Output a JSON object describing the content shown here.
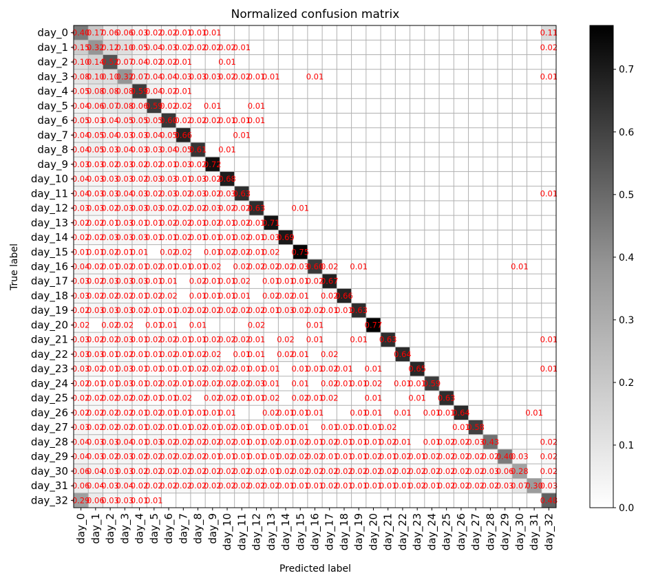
{
  "chart_data": {
    "type": "heatmap",
    "title": "Normalized confusion matrix",
    "xlabel": "Predicted label",
    "ylabel": "True label",
    "categories": [
      "day_0",
      "day_1",
      "day_2",
      "day_3",
      "day_4",
      "day_5",
      "day_6",
      "day_7",
      "day_8",
      "day_9",
      "day_10",
      "day_11",
      "day_12",
      "day_13",
      "day_14",
      "day_15",
      "day_16",
      "day_17",
      "day_18",
      "day_19",
      "day_20",
      "day_21",
      "day_22",
      "day_23",
      "day_24",
      "day_25",
      "day_26",
      "day_27",
      "day_28",
      "day_29",
      "day_30",
      "day_31",
      "day_32"
    ],
    "colormap": "Greys",
    "vmin": 0.0,
    "vmax": 0.77,
    "colorbar_ticks": [
      "0.0",
      "0.1",
      "0.2",
      "0.3",
      "0.4",
      "0.5",
      "0.6",
      "0.7"
    ],
    "grid": true,
    "annotation_color": "#ff0000",
    "values": [
      [
        0.4,
        0.17,
        0.06,
        0.06,
        0.03,
        0.02,
        0.02,
        0.01,
        0.01,
        0.01,
        0,
        0,
        0,
        0,
        0,
        0,
        0,
        0,
        0,
        0,
        0,
        0,
        0,
        0,
        0,
        0,
        0,
        0,
        0,
        0,
        0,
        0,
        0.11
      ],
      [
        0.15,
        0.32,
        0.12,
        0.1,
        0.05,
        0.04,
        0.03,
        0.02,
        0.02,
        0.02,
        0.02,
        0.01,
        0,
        0,
        0,
        0,
        0,
        0,
        0,
        0,
        0,
        0,
        0,
        0,
        0,
        0,
        0,
        0,
        0,
        0,
        0,
        0,
        0.02
      ],
      [
        0.1,
        0.14,
        0.52,
        0.07,
        0.04,
        0.02,
        0.02,
        0.01,
        0,
        0,
        0.01,
        0,
        0,
        0,
        0,
        0,
        0,
        0,
        0,
        0,
        0,
        0,
        0,
        0,
        0,
        0,
        0,
        0,
        0,
        0,
        0,
        0,
        0
      ],
      [
        0.08,
        0.1,
        0.1,
        0.32,
        0.07,
        0.04,
        0.04,
        0.03,
        0.03,
        0.03,
        0.02,
        0.02,
        0.01,
        0.01,
        0,
        0,
        0.01,
        0,
        0,
        0,
        0,
        0,
        0,
        0,
        0,
        0,
        0,
        0,
        0,
        0,
        0,
        0,
        0.01
      ],
      [
        0.05,
        0.08,
        0.08,
        0.08,
        0.59,
        0.04,
        0.02,
        0.01,
        0,
        0,
        0,
        0,
        0,
        0,
        0,
        0,
        0,
        0,
        0,
        0,
        0,
        0,
        0,
        0,
        0,
        0,
        0,
        0,
        0,
        0,
        0,
        0,
        0
      ],
      [
        0.04,
        0.06,
        0.07,
        0.08,
        0.06,
        0.59,
        0.02,
        0.02,
        0,
        0.01,
        0,
        0,
        0.01,
        0,
        0,
        0,
        0,
        0,
        0,
        0,
        0,
        0,
        0,
        0,
        0,
        0,
        0,
        0,
        0,
        0,
        0,
        0,
        0
      ],
      [
        0.05,
        0.03,
        0.04,
        0.05,
        0.05,
        0.05,
        0.6,
        0.02,
        0.02,
        0.02,
        0.01,
        0.01,
        0.01,
        0,
        0,
        0,
        0,
        0,
        0,
        0,
        0,
        0,
        0,
        0,
        0,
        0,
        0,
        0,
        0,
        0,
        0,
        0,
        0
      ],
      [
        0.04,
        0.05,
        0.04,
        0.03,
        0.03,
        0.04,
        0.05,
        0.66,
        0,
        0,
        0,
        0.01,
        0,
        0,
        0,
        0,
        0,
        0,
        0,
        0,
        0,
        0,
        0,
        0,
        0,
        0,
        0,
        0,
        0,
        0,
        0,
        0,
        0
      ],
      [
        0.04,
        0.05,
        0.03,
        0.04,
        0.03,
        0.03,
        0.04,
        0.05,
        0.61,
        0,
        0.01,
        0,
        0,
        0,
        0,
        0,
        0,
        0,
        0,
        0,
        0,
        0,
        0,
        0,
        0,
        0,
        0,
        0,
        0,
        0,
        0,
        0,
        0
      ],
      [
        0.03,
        0.03,
        0.02,
        0.03,
        0.02,
        0.02,
        0.01,
        0.03,
        0.02,
        0.72,
        0,
        0,
        0,
        0,
        0,
        0,
        0,
        0,
        0,
        0,
        0,
        0,
        0,
        0,
        0,
        0,
        0,
        0,
        0,
        0,
        0,
        0,
        0
      ],
      [
        0.04,
        0.03,
        0.03,
        0.03,
        0.02,
        0.03,
        0.03,
        0.01,
        0.03,
        0.02,
        0.68,
        0,
        0,
        0,
        0,
        0,
        0,
        0,
        0,
        0,
        0,
        0,
        0,
        0,
        0,
        0,
        0,
        0,
        0,
        0,
        0,
        0,
        0
      ],
      [
        0.04,
        0.03,
        0.03,
        0.04,
        0.03,
        0.02,
        0.03,
        0.02,
        0.03,
        0.02,
        0.03,
        0.63,
        0,
        0,
        0,
        0,
        0,
        0,
        0,
        0,
        0,
        0,
        0,
        0,
        0,
        0,
        0,
        0,
        0,
        0,
        0,
        0,
        0.01
      ],
      [
        0.03,
        0.03,
        0.02,
        0.03,
        0.03,
        0.03,
        0.02,
        0.02,
        0.02,
        0.03,
        0.02,
        0.02,
        0.63,
        0,
        0,
        0.01,
        0,
        0,
        0,
        0,
        0,
        0,
        0,
        0,
        0,
        0,
        0,
        0,
        0,
        0,
        0,
        0,
        0
      ],
      [
        0.02,
        0.02,
        0.01,
        0.03,
        0.01,
        0.01,
        0.02,
        0.02,
        0.01,
        0.02,
        0.01,
        0.02,
        0.01,
        0.71,
        0,
        0,
        0,
        0,
        0,
        0,
        0,
        0,
        0,
        0,
        0,
        0,
        0,
        0,
        0,
        0,
        0,
        0,
        0
      ],
      [
        0.02,
        0.02,
        0.03,
        0.03,
        0.03,
        0.01,
        0.01,
        0.02,
        0.01,
        0.01,
        0.01,
        0.02,
        0.01,
        0.03,
        0.69,
        0,
        0,
        0,
        0,
        0,
        0,
        0,
        0,
        0,
        0,
        0,
        0,
        0,
        0,
        0,
        0,
        0,
        0
      ],
      [
        0.01,
        0.01,
        0.02,
        0.01,
        0.01,
        0,
        0.02,
        0.02,
        0,
        0.01,
        0.02,
        0.02,
        0.01,
        0.02,
        0,
        0.75,
        0,
        0,
        0,
        0,
        0,
        0,
        0,
        0,
        0,
        0,
        0,
        0,
        0,
        0,
        0,
        0,
        0
      ],
      [
        0.04,
        0.02,
        0.01,
        0.02,
        0.01,
        0.02,
        0.01,
        0.01,
        0.01,
        0.02,
        0,
        0.02,
        0.02,
        0.02,
        0.02,
        0.03,
        0.6,
        0.02,
        0,
        0.01,
        0,
        0,
        0,
        0,
        0,
        0,
        0,
        0,
        0,
        0,
        0.01,
        0,
        0
      ],
      [
        0.03,
        0.02,
        0.03,
        0.03,
        0.03,
        0.01,
        0.01,
        0,
        0.02,
        0.01,
        0.01,
        0.02,
        0,
        0.01,
        0.01,
        0.01,
        0.02,
        0.67,
        0,
        0,
        0,
        0,
        0,
        0,
        0,
        0,
        0,
        0,
        0,
        0,
        0,
        0,
        0
      ],
      [
        0.03,
        0.02,
        0.02,
        0.02,
        0.01,
        0.02,
        0.02,
        0,
        0.01,
        0.01,
        0.01,
        0.01,
        0,
        0.02,
        0.02,
        0.01,
        0,
        0.02,
        0.66,
        0,
        0,
        0,
        0,
        0,
        0,
        0,
        0,
        0,
        0,
        0,
        0,
        0,
        0
      ],
      [
        0.02,
        0.03,
        0.03,
        0.03,
        0.02,
        0.01,
        0.01,
        0.02,
        0.02,
        0.02,
        0.02,
        0.02,
        0.02,
        0.01,
        0.03,
        0.02,
        0.02,
        0.01,
        0.01,
        0.63,
        0,
        0,
        0,
        0,
        0,
        0,
        0,
        0,
        0,
        0,
        0,
        0,
        0
      ],
      [
        0.02,
        0,
        0.02,
        0.02,
        0,
        0.01,
        0.01,
        0,
        0.01,
        0,
        0,
        0,
        0.02,
        0,
        0,
        0,
        0.01,
        0,
        0,
        0,
        0.77,
        0,
        0,
        0,
        0,
        0,
        0,
        0,
        0,
        0,
        0,
        0,
        0
      ],
      [
        0.03,
        0.02,
        0.02,
        0.03,
        0.01,
        0.02,
        0.02,
        0.01,
        0.01,
        0.02,
        0.02,
        0.02,
        0.01,
        0,
        0.02,
        0,
        0.01,
        0,
        0,
        0.01,
        0,
        0.63,
        0,
        0,
        0,
        0,
        0,
        0,
        0,
        0,
        0,
        0,
        0.01
      ],
      [
        0.03,
        0.03,
        0.01,
        0.02,
        0.01,
        0.01,
        0.02,
        0.01,
        0.02,
        0.02,
        0,
        0.01,
        0.01,
        0,
        0.02,
        0.01,
        0,
        0.02,
        0,
        0,
        0,
        0,
        0.64,
        0,
        0,
        0,
        0,
        0,
        0,
        0,
        0,
        0,
        0
      ],
      [
        0.03,
        0.02,
        0.01,
        0.03,
        0.01,
        0.01,
        0.01,
        0.01,
        0.02,
        0.02,
        0.02,
        0.01,
        0.01,
        0.01,
        0,
        0.01,
        0.01,
        0.02,
        0.01,
        0,
        0.01,
        0,
        0,
        0.65,
        0,
        0,
        0,
        0,
        0,
        0,
        0,
        0,
        0.01
      ],
      [
        0.02,
        0.01,
        0.01,
        0.03,
        0.01,
        0.02,
        0.02,
        0.01,
        0.02,
        0.02,
        0.02,
        0.02,
        0.03,
        0.01,
        0,
        0.01,
        0,
        0.02,
        0.01,
        0.01,
        0.02,
        0,
        0.01,
        0.01,
        0.59,
        0,
        0,
        0,
        0,
        0,
        0,
        0,
        0
      ],
      [
        0.02,
        0.02,
        0.02,
        0.02,
        0.02,
        0.01,
        0.01,
        0.02,
        0,
        0.02,
        0.02,
        0.01,
        0.01,
        0.02,
        0,
        0.02,
        0.01,
        0.02,
        0,
        0,
        0.01,
        0,
        0,
        0.01,
        0,
        0.63,
        0,
        0,
        0,
        0,
        0,
        0,
        0
      ],
      [
        0.02,
        0.02,
        0.02,
        0.02,
        0.01,
        0.02,
        0.01,
        0.01,
        0.01,
        0.01,
        0.01,
        0,
        0,
        0.02,
        0.01,
        0.01,
        0.01,
        0,
        0,
        0.01,
        0.01,
        0,
        0.01,
        0,
        0.01,
        0.01,
        0.64,
        0,
        0,
        0,
        0,
        0.01,
        0
      ],
      [
        0.03,
        0.02,
        0.02,
        0.02,
        0.01,
        0.02,
        0.01,
        0.01,
        0.02,
        0.01,
        0.02,
        0.01,
        0.01,
        0.01,
        0.01,
        0.01,
        0,
        0.01,
        0.01,
        0.01,
        0.01,
        0.02,
        0,
        0,
        0,
        0,
        0.01,
        0.58,
        0,
        0,
        0,
        0,
        0
      ],
      [
        0.04,
        0.03,
        0.03,
        0.04,
        0.01,
        0.03,
        0.02,
        0.02,
        0.02,
        0.02,
        0.02,
        0.01,
        0.01,
        0.02,
        0.01,
        0.02,
        0.01,
        0.02,
        0.01,
        0.01,
        0.01,
        0.02,
        0.01,
        0,
        0.01,
        0.02,
        0.02,
        0.03,
        0.43,
        0,
        0,
        0,
        0.02
      ],
      [
        0.04,
        0.03,
        0.02,
        0.03,
        0.02,
        0.02,
        0.02,
        0.02,
        0.02,
        0.01,
        0.01,
        0.01,
        0.01,
        0.01,
        0.02,
        0.02,
        0.02,
        0.01,
        0.01,
        0.01,
        0.02,
        0.01,
        0.02,
        0.01,
        0.02,
        0.02,
        0.02,
        0.02,
        0.02,
        0.4,
        0.03,
        0,
        0.02
      ],
      [
        0.06,
        0.04,
        0.03,
        0.03,
        0.02,
        0.02,
        0.02,
        0.02,
        0.02,
        0.02,
        0.02,
        0.02,
        0.02,
        0.01,
        0.02,
        0.02,
        0.02,
        0.02,
        0.02,
        0.02,
        0.02,
        0.02,
        0.02,
        0.02,
        0.02,
        0.02,
        0.02,
        0.02,
        0.03,
        0.06,
        0.28,
        0,
        0.02
      ],
      [
        0.06,
        0.04,
        0.03,
        0.04,
        0.02,
        0.02,
        0.02,
        0.02,
        0.02,
        0.02,
        0.02,
        0.02,
        0.02,
        0.02,
        0.01,
        0.01,
        0.01,
        0.02,
        0.01,
        0.01,
        0.01,
        0.01,
        0.01,
        0.02,
        0.01,
        0.02,
        0.02,
        0.02,
        0.02,
        0.03,
        0.07,
        0.3,
        0.03
      ],
      [
        0.29,
        0.06,
        0.03,
        0.03,
        0.01,
        0.01,
        0,
        0,
        0,
        0,
        0,
        0,
        0,
        0,
        0,
        0,
        0,
        0,
        0,
        0,
        0,
        0,
        0,
        0,
        0,
        0,
        0,
        0,
        0,
        0,
        0,
        0,
        0.48
      ]
    ]
  }
}
